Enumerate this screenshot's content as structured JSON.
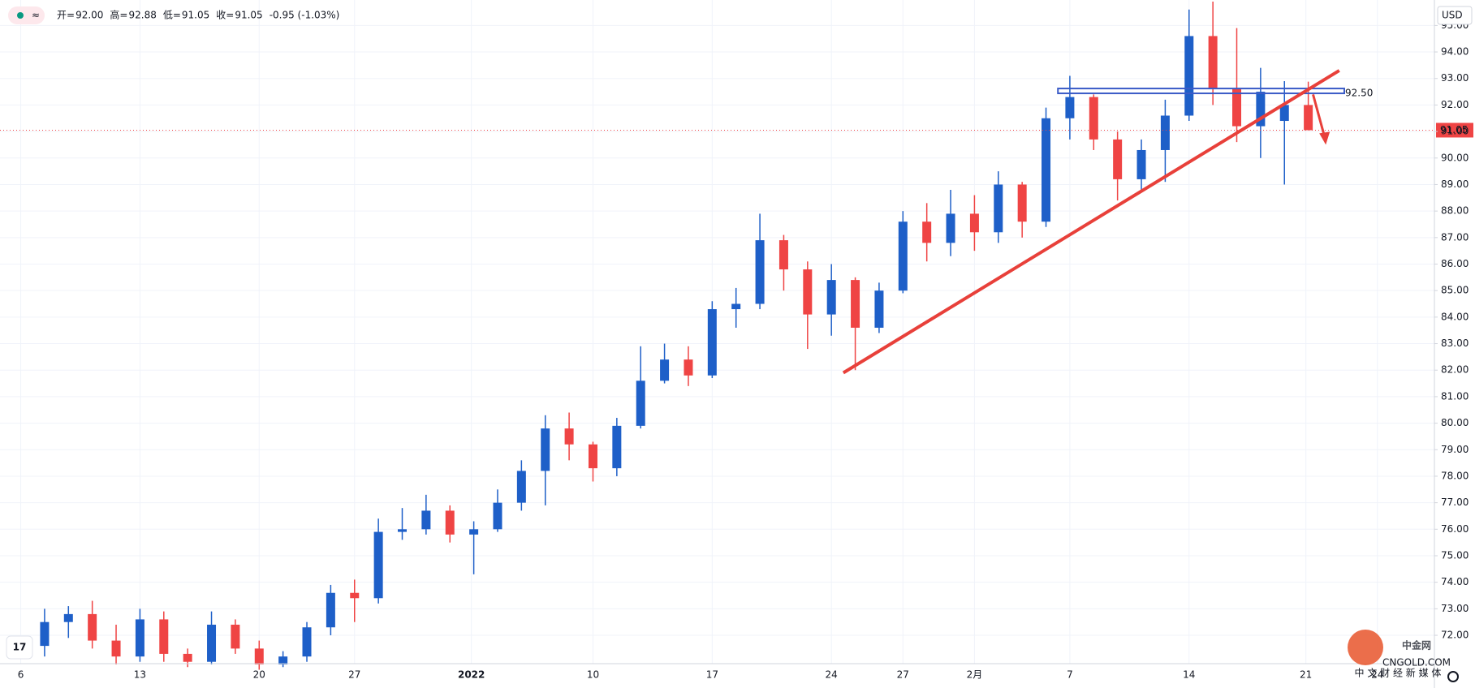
{
  "header": {
    "items": [
      {
        "label": "开=",
        "value": "92.00"
      },
      {
        "label": "高=",
        "value": "92.88"
      },
      {
        "label": "低=",
        "value": "91.05"
      },
      {
        "label": "收=",
        "value": "91.05"
      }
    ],
    "change": "-0.95 (-1.03%)",
    "currency": "USD"
  },
  "watermark": {
    "brand": "中金网",
    "site": "CNGOLD.COM",
    "slogan": "中 文 财 经 新 媒 体"
  },
  "chart_data": {
    "type": "candlestick",
    "x": [
      1,
      2,
      3,
      4,
      5,
      6,
      7,
      8,
      9,
      10,
      11,
      12,
      13,
      14,
      15,
      16,
      17,
      18,
      19,
      20,
      21,
      22,
      23,
      24,
      25,
      26,
      27,
      28,
      29,
      30,
      31,
      32,
      33,
      34,
      35,
      36,
      37,
      38,
      39,
      40,
      41,
      42,
      43,
      44,
      45,
      46,
      47,
      48,
      49,
      50,
      51,
      52,
      53,
      54
    ],
    "open": [
      71.6,
      72.5,
      72.8,
      71.8,
      71.2,
      72.6,
      71.3,
      71.0,
      72.4,
      71.5,
      70.9,
      71.2,
      72.3,
      73.6,
      73.4,
      75.9,
      76.0,
      76.7,
      75.8,
      76.0,
      77.0,
      78.2,
      79.8,
      79.2,
      78.3,
      79.9,
      81.6,
      82.4,
      81.8,
      84.3,
      84.5,
      86.9,
      85.8,
      84.1,
      85.4,
      83.6,
      85.0,
      87.6,
      86.8,
      87.9,
      87.2,
      89.0,
      87.6,
      91.5,
      92.3,
      90.7,
      89.2,
      90.3,
      91.6,
      94.6,
      92.6,
      91.2,
      91.4,
      92.0
    ],
    "high": [
      73.0,
      73.1,
      73.3,
      72.4,
      73.0,
      72.9,
      71.5,
      72.9,
      72.6,
      71.8,
      71.4,
      72.5,
      73.9,
      74.1,
      76.4,
      76.8,
      77.3,
      76.9,
      76.3,
      77.5,
      78.6,
      80.3,
      80.4,
      79.3,
      80.2,
      82.9,
      83.0,
      82.9,
      84.6,
      85.1,
      87.9,
      87.1,
      86.1,
      86.0,
      85.5,
      85.3,
      88.0,
      88.3,
      88.8,
      88.6,
      89.5,
      89.1,
      91.9,
      93.1,
      92.4,
      91.0,
      90.7,
      92.2,
      95.6,
      95.9,
      94.9,
      93.4,
      92.9,
      92.88
    ],
    "low": [
      71.2,
      71.9,
      71.5,
      70.9,
      71.0,
      71.0,
      70.8,
      70.9,
      71.3,
      70.7,
      70.8,
      71.0,
      72.0,
      72.5,
      73.2,
      75.6,
      75.8,
      75.5,
      74.3,
      75.9,
      76.7,
      76.9,
      78.6,
      77.8,
      78.0,
      79.8,
      81.5,
      81.4,
      81.7,
      83.6,
      84.3,
      85.0,
      82.8,
      83.3,
      82.0,
      83.4,
      84.9,
      86.1,
      86.3,
      86.5,
      86.8,
      87.0,
      87.4,
      90.7,
      90.3,
      88.4,
      88.8,
      89.1,
      91.4,
      92.0,
      90.6,
      90.0,
      89.0,
      91.05
    ],
    "close": [
      72.5,
      72.8,
      71.8,
      71.2,
      72.6,
      71.3,
      71.0,
      72.4,
      71.5,
      70.9,
      71.2,
      72.3,
      73.6,
      73.4,
      75.9,
      76.0,
      76.7,
      75.8,
      76.0,
      77.0,
      78.2,
      79.8,
      79.2,
      78.3,
      79.9,
      81.6,
      82.4,
      81.8,
      84.3,
      84.5,
      86.9,
      85.8,
      84.1,
      85.4,
      83.6,
      85.0,
      87.6,
      86.8,
      87.9,
      87.2,
      89.0,
      87.6,
      91.5,
      92.3,
      90.7,
      89.2,
      90.3,
      91.6,
      94.6,
      92.6,
      91.2,
      92.5,
      92.0,
      91.05
    ],
    "up_color": "#1e5fc8",
    "down_color": "#ef4444",
    "xlim": [
      -0.87,
      59.29
    ],
    "xticks": [
      {
        "value": 0,
        "label": "6"
      },
      {
        "value": 5,
        "label": "13"
      },
      {
        "value": 10,
        "label": "20"
      },
      {
        "value": 14,
        "label": "27"
      },
      {
        "value": 18.9,
        "label": "2022"
      },
      {
        "value": 24,
        "label": "10"
      },
      {
        "value": 29,
        "label": "17"
      },
      {
        "value": 34,
        "label": "24"
      },
      {
        "value": 37,
        "label": "27"
      },
      {
        "value": 40,
        "label": "2月"
      },
      {
        "value": 44,
        "label": "7"
      },
      {
        "value": 49,
        "label": "14"
      },
      {
        "value": 53.9,
        "label": "21"
      },
      {
        "value": 56.9,
        "label": "24"
      }
    ],
    "ylim": [
      70.93,
      95.96
    ],
    "yticks": [
      {
        "value": 72,
        "label": "72.00"
      },
      {
        "value": 73,
        "label": "73.00"
      },
      {
        "value": 74,
        "label": "74.00"
      },
      {
        "value": 75,
        "label": "75.00"
      },
      {
        "value": 76,
        "label": "76.00"
      },
      {
        "value": 77,
        "label": "77.00"
      },
      {
        "value": 78,
        "label": "78.00"
      },
      {
        "value": 79,
        "label": "79.00"
      },
      {
        "value": 80,
        "label": "80.00"
      },
      {
        "value": 81,
        "label": "81.00"
      },
      {
        "value": 82,
        "label": "82.00"
      },
      {
        "value": 83,
        "label": "83.00"
      },
      {
        "value": 84,
        "label": "84.00"
      },
      {
        "value": 85,
        "label": "85.00"
      },
      {
        "value": 86,
        "label": "86.00"
      },
      {
        "value": 87,
        "label": "87.00"
      },
      {
        "value": 88,
        "label": "88.00"
      },
      {
        "value": 89,
        "label": "89.00"
      },
      {
        "value": 90,
        "label": "90.00"
      },
      {
        "value": 91,
        "label": "91.00"
      },
      {
        "value": 92,
        "label": "92.00"
      },
      {
        "value": 93,
        "label": "93.00"
      },
      {
        "value": 94,
        "label": "94.00"
      },
      {
        "value": 95,
        "label": "95.00"
      }
    ],
    "grid": true,
    "last_price": {
      "value": 91.05,
      "label": "91.05"
    },
    "resistance": {
      "value": 92.5,
      "label": "92.50",
      "x_start": 43.5,
      "color": "#3a5bc7"
    },
    "trendline": {
      "x": [
        34.5,
        55.3
      ],
      "y": [
        81.9,
        93.3
      ],
      "color": "#e8403a"
    },
    "arrow": {
      "x": [
        54.2,
        54.7
      ],
      "y": [
        92.4,
        90.5
      ],
      "color": "#e8403a"
    }
  }
}
